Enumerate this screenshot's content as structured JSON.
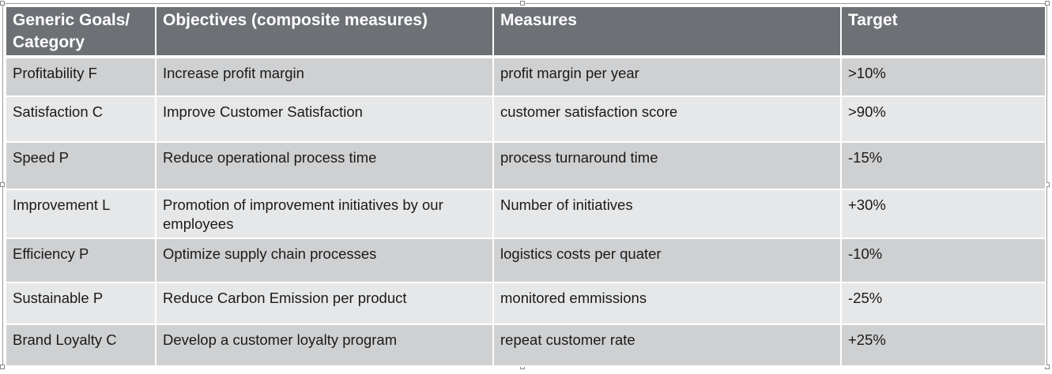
{
  "table": {
    "headers": [
      "Generic Goals/ Category",
      "Objectives (composite measures)",
      "Measures",
      "Target"
    ],
    "rows": [
      [
        "Profitability F",
        "Increase profit margin",
        "profit margin per year",
        ">10%"
      ],
      [
        "Satisfaction C",
        "Improve Customer Satisfaction",
        "customer satisfaction score",
        ">90%"
      ],
      [
        "Speed P",
        "Reduce operational process time",
        "process turnaround time",
        "-15%"
      ],
      [
        "Improvement L",
        "Promotion of improvement initiatives by our employees",
        "Number of initiatives",
        "+30%"
      ],
      [
        "Efficiency P",
        "Optimize supply chain processes",
        "logistics costs per quater",
        "-10%"
      ],
      [
        "Sustainable P",
        "Reduce Carbon Emission per product",
        "monitored emmissions",
        "-25%"
      ],
      [
        "Brand Loyalty C",
        "Develop a customer loyalty program",
        "repeat customer rate",
        "+25%"
      ]
    ]
  },
  "colors": {
    "header_bg": "#6d7074",
    "header_text": "#ffffff",
    "row_dark": "#cfd0d2",
    "row_light": "#e6e7e8",
    "border": "#ffffff"
  }
}
